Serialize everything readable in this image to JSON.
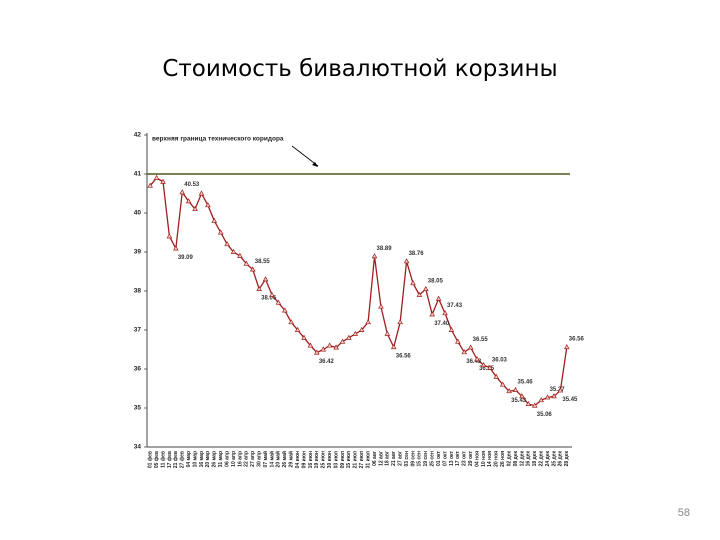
{
  "title": "Стоимость бивалютной корзины",
  "page_number": "58",
  "chart_data": {
    "type": "line",
    "annotation": "верхняя граница технического коридора",
    "reference_line": 41,
    "reference_color": "#4a5a1c",
    "ylim": [
      34,
      42
    ],
    "yticks": [
      34,
      35,
      36,
      37,
      38,
      39,
      40,
      41,
      42
    ],
    "categories": [
      "01 фев",
      "05 фев",
      "11 фев",
      "17 фев",
      "21 фев",
      "27 фев",
      "04 мар",
      "10 мар",
      "16 мар",
      "20 мар",
      "26 мар",
      "31 мар",
      "06 апр",
      "10 апр",
      "16 апр",
      "22 апр",
      "27 апр",
      "30 апр",
      "07 май",
      "14 май",
      "20 май",
      "26 май",
      "29 май",
      "04 июн",
      "09 июн",
      "16 июн",
      "19 июн",
      "25 июн",
      "30 июн",
      "03 июл",
      "09 июл",
      "15 июл",
      "21 июл",
      "27 июл",
      "31 июл",
      "06 авг",
      "12 авг",
      "18 авг",
      "21 авг",
      "27 авг",
      "03 сен",
      "09 сен",
      "15 сен",
      "19 сен",
      "25 сен",
      "01 окт",
      "07 окт",
      "13 окт",
      "17 окт",
      "23 окт",
      "29 окт",
      "04 ноя",
      "10 ноя",
      "14 ноя",
      "20 ноя",
      "26 ноя",
      "02 дек",
      "08 дек",
      "12 дек",
      "16 дек",
      "18 дек",
      "22 дек",
      "24 дек",
      "25 дек",
      "26 дек",
      "28 дек"
    ],
    "series": [
      {
        "name": "Стоимость бивалютной корзины",
        "color": "#a01e1e",
        "values": [
          40.7,
          40.9,
          40.8,
          39.4,
          39.09,
          40.53,
          40.3,
          40.1,
          40.5,
          40.2,
          39.8,
          39.5,
          39.2,
          39.0,
          38.9,
          38.7,
          38.55,
          38.05,
          38.3,
          37.9,
          37.7,
          37.5,
          37.2,
          37.0,
          36.8,
          36.6,
          36.42,
          36.5,
          36.6,
          36.55,
          36.7,
          36.8,
          36.9,
          37.0,
          37.2,
          38.89,
          37.6,
          36.9,
          36.56,
          37.2,
          38.76,
          38.2,
          37.9,
          38.05,
          37.4,
          37.8,
          37.43,
          37.0,
          36.7,
          36.43,
          36.55,
          36.25,
          36.1,
          36.03,
          35.8,
          35.6,
          35.43,
          35.46,
          35.3,
          35.1,
          35.06,
          35.2,
          35.27,
          35.3,
          35.45,
          36.56
        ],
        "value_labels": [
          null,
          null,
          null,
          null,
          "39.09",
          "40.53",
          null,
          null,
          null,
          null,
          null,
          null,
          null,
          null,
          null,
          null,
          "38.55",
          "38.05",
          null,
          null,
          null,
          null,
          null,
          null,
          null,
          null,
          "36.42",
          null,
          null,
          null,
          null,
          null,
          null,
          null,
          null,
          "38.89",
          null,
          null,
          "36.56",
          null,
          "38.76",
          null,
          null,
          "38.05",
          "37.40",
          null,
          "37.43",
          null,
          null,
          "36.43",
          "36.55",
          "36.25",
          null,
          "36.03",
          null,
          null,
          "35.43",
          "35.46",
          null,
          null,
          "35.06",
          null,
          "35.27",
          null,
          "35.45",
          "36.56"
        ]
      }
    ]
  }
}
